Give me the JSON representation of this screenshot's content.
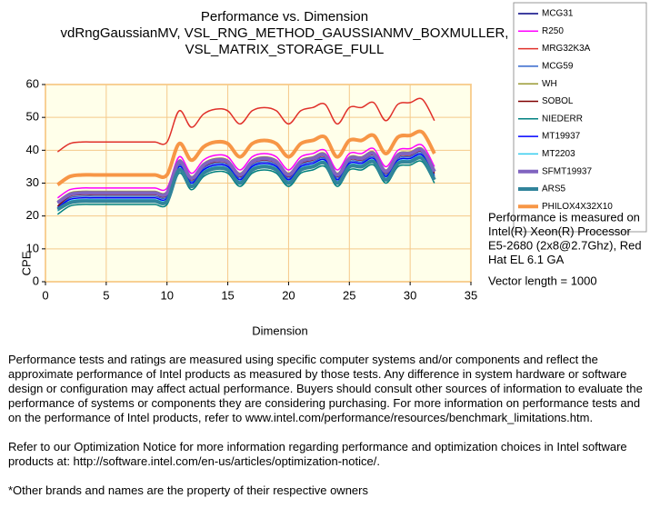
{
  "chart_data": {
    "type": "line",
    "title": [
      "Performance vs. Dimension",
      "vdRngGaussianMV,  VSL_RNG_METHOD_GAUSSIANMV_BOXMULLER,",
      "VSL_MATRIX_STORAGE_FULL"
    ],
    "x_label": "Dimension",
    "y_label": "CPE",
    "x": [
      1,
      2,
      3,
      4,
      5,
      6,
      7,
      8,
      9,
      10,
      11,
      12,
      13,
      14,
      15,
      16,
      17,
      18,
      19,
      20,
      21,
      22,
      23,
      24,
      25,
      26,
      27,
      28,
      29,
      30,
      31,
      32
    ],
    "xlim": [
      0,
      35
    ],
    "xticks": [
      0,
      5,
      10,
      15,
      20,
      25,
      30,
      35
    ],
    "ylim": [
      0,
      60
    ],
    "yticks": [
      0,
      10,
      20,
      30,
      40,
      50,
      60
    ],
    "grid": true,
    "legend": "top-right",
    "series": [
      {
        "name": "MCG31",
        "color": "#000080",
        "line_width": 1.5,
        "values": [
          24,
          26.5,
          27,
          27,
          27,
          27,
          27,
          27,
          27,
          27,
          36.5,
          31.5,
          35.5,
          37,
          36.5,
          32.5,
          36.5,
          37.5,
          36.5,
          32.5,
          36.5,
          37.5,
          38.5,
          32.5,
          37.5,
          37.5,
          39,
          33.5,
          38.5,
          39,
          40,
          33.5
        ]
      },
      {
        "name": "R250",
        "color": "#FF00FF",
        "line_width": 1.5,
        "values": [
          25.5,
          28,
          28.5,
          28.5,
          28.5,
          28.5,
          28.5,
          28.5,
          28.5,
          28.5,
          38,
          33,
          37,
          38.5,
          38,
          34,
          38,
          39,
          38,
          34,
          38,
          39,
          40,
          34,
          39,
          39,
          40.5,
          35,
          40,
          40.5,
          41.5,
          35
        ]
      },
      {
        "name": "MRG32K3A",
        "color": "#E0302A",
        "line_width": 1.5,
        "values": [
          39.5,
          42,
          42.5,
          42.5,
          42.5,
          42.5,
          42.5,
          42.5,
          42.5,
          42.5,
          52,
          47,
          51,
          52.5,
          52,
          48,
          52,
          53,
          52,
          48,
          52,
          53,
          54,
          48,
          53,
          53,
          54.5,
          49,
          54,
          54.5,
          55.5,
          49
        ]
      },
      {
        "name": "MCG59",
        "color": "#3366CC",
        "line_width": 1.5,
        "values": [
          22.5,
          25.5,
          26,
          26,
          26,
          26,
          26,
          26,
          26,
          26,
          35.5,
          30.5,
          34.5,
          36,
          35.5,
          31.5,
          35.5,
          36.5,
          35.5,
          31.5,
          35.5,
          36.5,
          37.5,
          31.5,
          36.5,
          36.5,
          38,
          32.5,
          37.5,
          38,
          39,
          32.5
        ]
      },
      {
        "name": "WH",
        "color": "#999933",
        "line_width": 1.5,
        "values": [
          24.5,
          27,
          27.5,
          27.5,
          27.5,
          27.5,
          27.5,
          27.5,
          27.5,
          27.5,
          37,
          32,
          36,
          37.5,
          37,
          33,
          37,
          38,
          37,
          33,
          37,
          38,
          39,
          33,
          38,
          38,
          39.5,
          34,
          39,
          39.5,
          40.5,
          34
        ]
      },
      {
        "name": "SOBOL",
        "color": "#800000",
        "line_width": 1.5,
        "values": [
          23,
          26,
          26.5,
          26.5,
          26.5,
          26.5,
          26.5,
          26.5,
          26.5,
          26.5,
          36,
          31,
          35,
          36.5,
          36,
          32,
          36,
          37,
          36,
          32,
          36,
          37,
          38,
          32,
          37,
          37,
          38.5,
          33,
          38,
          38.5,
          39.5,
          33
        ]
      },
      {
        "name": "NIEDERR",
        "color": "#008080",
        "line_width": 1.5,
        "values": [
          20.5,
          23,
          23.5,
          23.5,
          23.5,
          23.5,
          23.5,
          23.5,
          23.5,
          23.5,
          33,
          28,
          32,
          33.5,
          33,
          29,
          33,
          34,
          33,
          29,
          33,
          34,
          35,
          29,
          34,
          34,
          35.5,
          30,
          35,
          35.5,
          36.5,
          30
        ]
      },
      {
        "name": "MT19937",
        "color": "#0000FF",
        "line_width": 1.5,
        "values": [
          22.5,
          25,
          25.5,
          25.5,
          25.5,
          25.5,
          25.5,
          25.5,
          25.5,
          25.5,
          35,
          30,
          34,
          35.5,
          35,
          31,
          35,
          36,
          35,
          31,
          35,
          36,
          37,
          31,
          36,
          36,
          37.5,
          32,
          37,
          37.5,
          38.5,
          32
        ]
      },
      {
        "name": "MT2203",
        "color": "#33CCEE",
        "line_width": 1.5,
        "values": [
          21.5,
          24.5,
          25,
          25,
          25,
          25,
          25,
          25,
          25,
          25,
          34.5,
          29.5,
          33.5,
          35,
          34.5,
          30.5,
          34.5,
          35.5,
          34.5,
          30.5,
          34.5,
          35.5,
          36.5,
          30.5,
          35.5,
          35.5,
          37,
          31.5,
          36.5,
          37,
          38,
          31.5
        ]
      },
      {
        "name": "SFMT19937",
        "color": "#8064C0",
        "line_width": 4,
        "values": [
          24,
          26.5,
          27,
          27,
          27,
          27,
          27,
          27,
          27,
          27,
          36.5,
          31.5,
          35.5,
          37,
          36.5,
          32.5,
          36.5,
          37.5,
          36.5,
          32.5,
          36.5,
          37.5,
          38.5,
          32.5,
          37.5,
          37.5,
          39,
          33.5,
          38.5,
          39,
          40,
          33.5
        ]
      },
      {
        "name": "ARS5",
        "color": "#31849B",
        "line_width": 4,
        "values": [
          22,
          24,
          24.5,
          24.5,
          24.5,
          24.5,
          24.5,
          24.5,
          24.5,
          24.5,
          34,
          29,
          33,
          34.5,
          34,
          30,
          34,
          35,
          34,
          30,
          34,
          35,
          36,
          30,
          35,
          35,
          36.5,
          31,
          36,
          36.5,
          37.5,
          31
        ]
      },
      {
        "name": "PHILOX4X32X10",
        "color": "#F79646",
        "line_width": 4,
        "values": [
          29.5,
          32,
          32.5,
          32.5,
          32.5,
          32.5,
          32.5,
          32.5,
          32.5,
          32.5,
          42,
          37,
          41,
          42.5,
          42,
          38,
          42,
          43,
          42,
          38,
          42,
          43,
          44,
          38,
          43,
          43,
          44.5,
          39,
          44,
          44.5,
          45.5,
          39
        ]
      }
    ],
    "side_note": [
      "Performance is measured on",
      "Intel(R) Xeon(R) Processor",
      "E5-2680 (2x8@2.7Ghz),  Red",
      "Hat EL 6.1 GA"
    ],
    "vector_length": "Vector length = 1000",
    "footnotes": [
      "Performance tests and ratings are measured using specific computer systems and/or components and reflect the approximate performance of Intel products as measured by those tests. Any difference in system hardware or software design or configuration may affect actual performance. Buyers should consult other sources of information to evaluate the performance of systems or components they are considering purchasing. For more information on performance tests and on the performance of Intel products, refer to www.intel.com/performance/resources/benchmark_limitations.htm.",
      "Refer to our Optimization Notice for more information regarding performance and optimization choices in Intel software products at: http://software.intel.com/en-us/articles/optimization-notice/.",
      "*Other brands and names are the property of their respective owners"
    ]
  }
}
